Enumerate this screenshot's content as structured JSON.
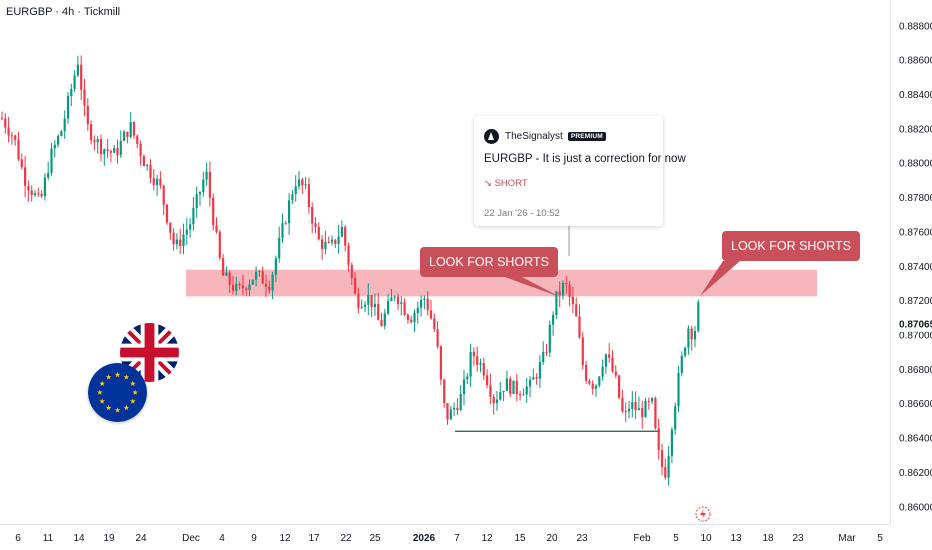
{
  "header": {
    "symbol_title": "EURGBP · 4h · Tickmill"
  },
  "colors": {
    "up": "#089981",
    "down": "#f23645",
    "zone": "#f7b2b8",
    "callout": "#c9505a",
    "support": "#1e5b33"
  },
  "chart_data": {
    "type": "candlestick",
    "price_axis": {
      "min": 0.859,
      "max": 0.8895,
      "ticks": [
        "0.88800",
        "0.88600",
        "0.88400",
        "0.88200",
        "0.88000",
        "0.87800",
        "0.87600",
        "0.87400",
        "0.87200",
        "0.87000",
        "0.86800",
        "0.86600",
        "0.86400",
        "0.86200",
        "0.86000"
      ],
      "last_price": "0.87065"
    },
    "time_axis": {
      "labels": [
        "6",
        "11",
        "14",
        "19",
        "24",
        "Dec",
        "4",
        "9",
        "12",
        "17",
        "22",
        "25",
        "2026",
        "7",
        "12",
        "15",
        "20",
        "23",
        "Feb",
        "5",
        "10",
        "13",
        "18",
        "23",
        "Mar",
        "5"
      ],
      "bold": [
        "2026"
      ]
    },
    "price_path": [
      [
        0,
        0.8828
      ],
      [
        14,
        0.8815
      ],
      [
        24,
        0.8792
      ],
      [
        40,
        0.8776
      ],
      [
        50,
        0.8803
      ],
      [
        62,
        0.882
      ],
      [
        78,
        0.886
      ],
      [
        86,
        0.8822
      ],
      [
        100,
        0.881
      ],
      [
        115,
        0.8805
      ],
      [
        130,
        0.8822
      ],
      [
        145,
        0.88
      ],
      [
        160,
        0.8786
      ],
      [
        175,
        0.875
      ],
      [
        190,
        0.8765
      ],
      [
        206,
        0.8795
      ],
      [
        214,
        0.8765
      ],
      [
        222,
        0.8735
      ],
      [
        238,
        0.8725
      ],
      [
        255,
        0.8735
      ],
      [
        270,
        0.873
      ],
      [
        282,
        0.876
      ],
      [
        295,
        0.879
      ],
      [
        305,
        0.8785
      ],
      [
        318,
        0.8755
      ],
      [
        330,
        0.875
      ],
      [
        342,
        0.8762
      ],
      [
        356,
        0.872
      ],
      [
        370,
        0.8722
      ],
      [
        380,
        0.8705
      ],
      [
        395,
        0.8725
      ],
      [
        410,
        0.871
      ],
      [
        425,
        0.8722
      ],
      [
        436,
        0.87
      ],
      [
        443,
        0.866
      ],
      [
        448,
        0.8652
      ],
      [
        462,
        0.8665
      ],
      [
        472,
        0.869
      ],
      [
        484,
        0.868
      ],
      [
        494,
        0.8662
      ],
      [
        505,
        0.8672
      ],
      [
        516,
        0.8668
      ],
      [
        530,
        0.867
      ],
      [
        545,
        0.8688
      ],
      [
        555,
        0.872
      ],
      [
        565,
        0.873
      ],
      [
        576,
        0.871
      ],
      [
        584,
        0.8678
      ],
      [
        595,
        0.867
      ],
      [
        605,
        0.869
      ],
      [
        615,
        0.8675
      ],
      [
        624,
        0.865
      ],
      [
        630,
        0.866
      ],
      [
        640,
        0.8655
      ],
      [
        652,
        0.866
      ],
      [
        656,
        0.864
      ],
      [
        660,
        0.8625
      ],
      [
        666,
        0.862
      ],
      [
        672,
        0.865
      ],
      [
        680,
        0.868
      ],
      [
        688,
        0.8705
      ],
      [
        694,
        0.87
      ],
      [
        700,
        0.8722
      ]
    ],
    "zones": [
      {
        "price_top": 0.8738,
        "price_bottom": 0.87225
      }
    ],
    "support_level": 0.8644,
    "callouts": [
      {
        "label": "LOOK FOR SHORTS"
      },
      {
        "label": "LOOK FOR SHORTS"
      }
    ]
  },
  "idea_card": {
    "author": "TheSignalyst",
    "badge": "PREMIUM",
    "title": "EURGBP - It is just a correction for now",
    "direction": "↘ SHORT",
    "date": "22 Jan '26 - 10:52"
  },
  "flags": {
    "top": "uk-flag-icon",
    "bottom": "eu-flag-icon"
  }
}
